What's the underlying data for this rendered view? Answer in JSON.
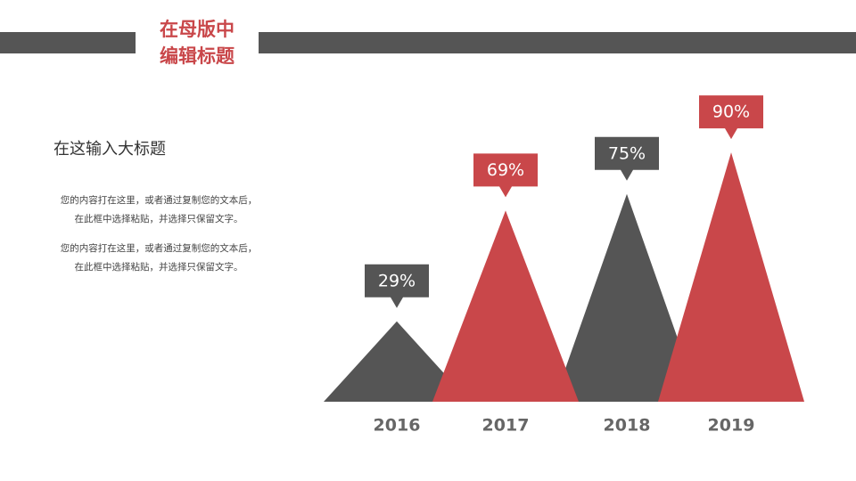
{
  "header": {
    "title": [
      "在母版中",
      "编辑标题"
    ]
  },
  "text": {
    "heading": "在这输入大标题",
    "paragraphs": [
      [
        "您的内容打在这里，或者通过复制您的文本后，",
        "在此框中选择粘贴，并选择只保留文字。"
      ],
      [
        "您的内容打在这里，或者通过复制您的文本后，",
        "在此框中选择粘贴，并选择只保留文字。"
      ]
    ]
  },
  "chart_data": {
    "type": "triangle",
    "categories": [
      "2016",
      "2017",
      "2018",
      "2019"
    ],
    "values": [
      29,
      69,
      75,
      90
    ],
    "value_labels": [
      "29%",
      "69%",
      "75%",
      "90%"
    ],
    "colors": [
      "#555555",
      "#c9474a",
      "#555555",
      "#c9474a"
    ],
    "ylim": [
      0,
      100
    ]
  }
}
